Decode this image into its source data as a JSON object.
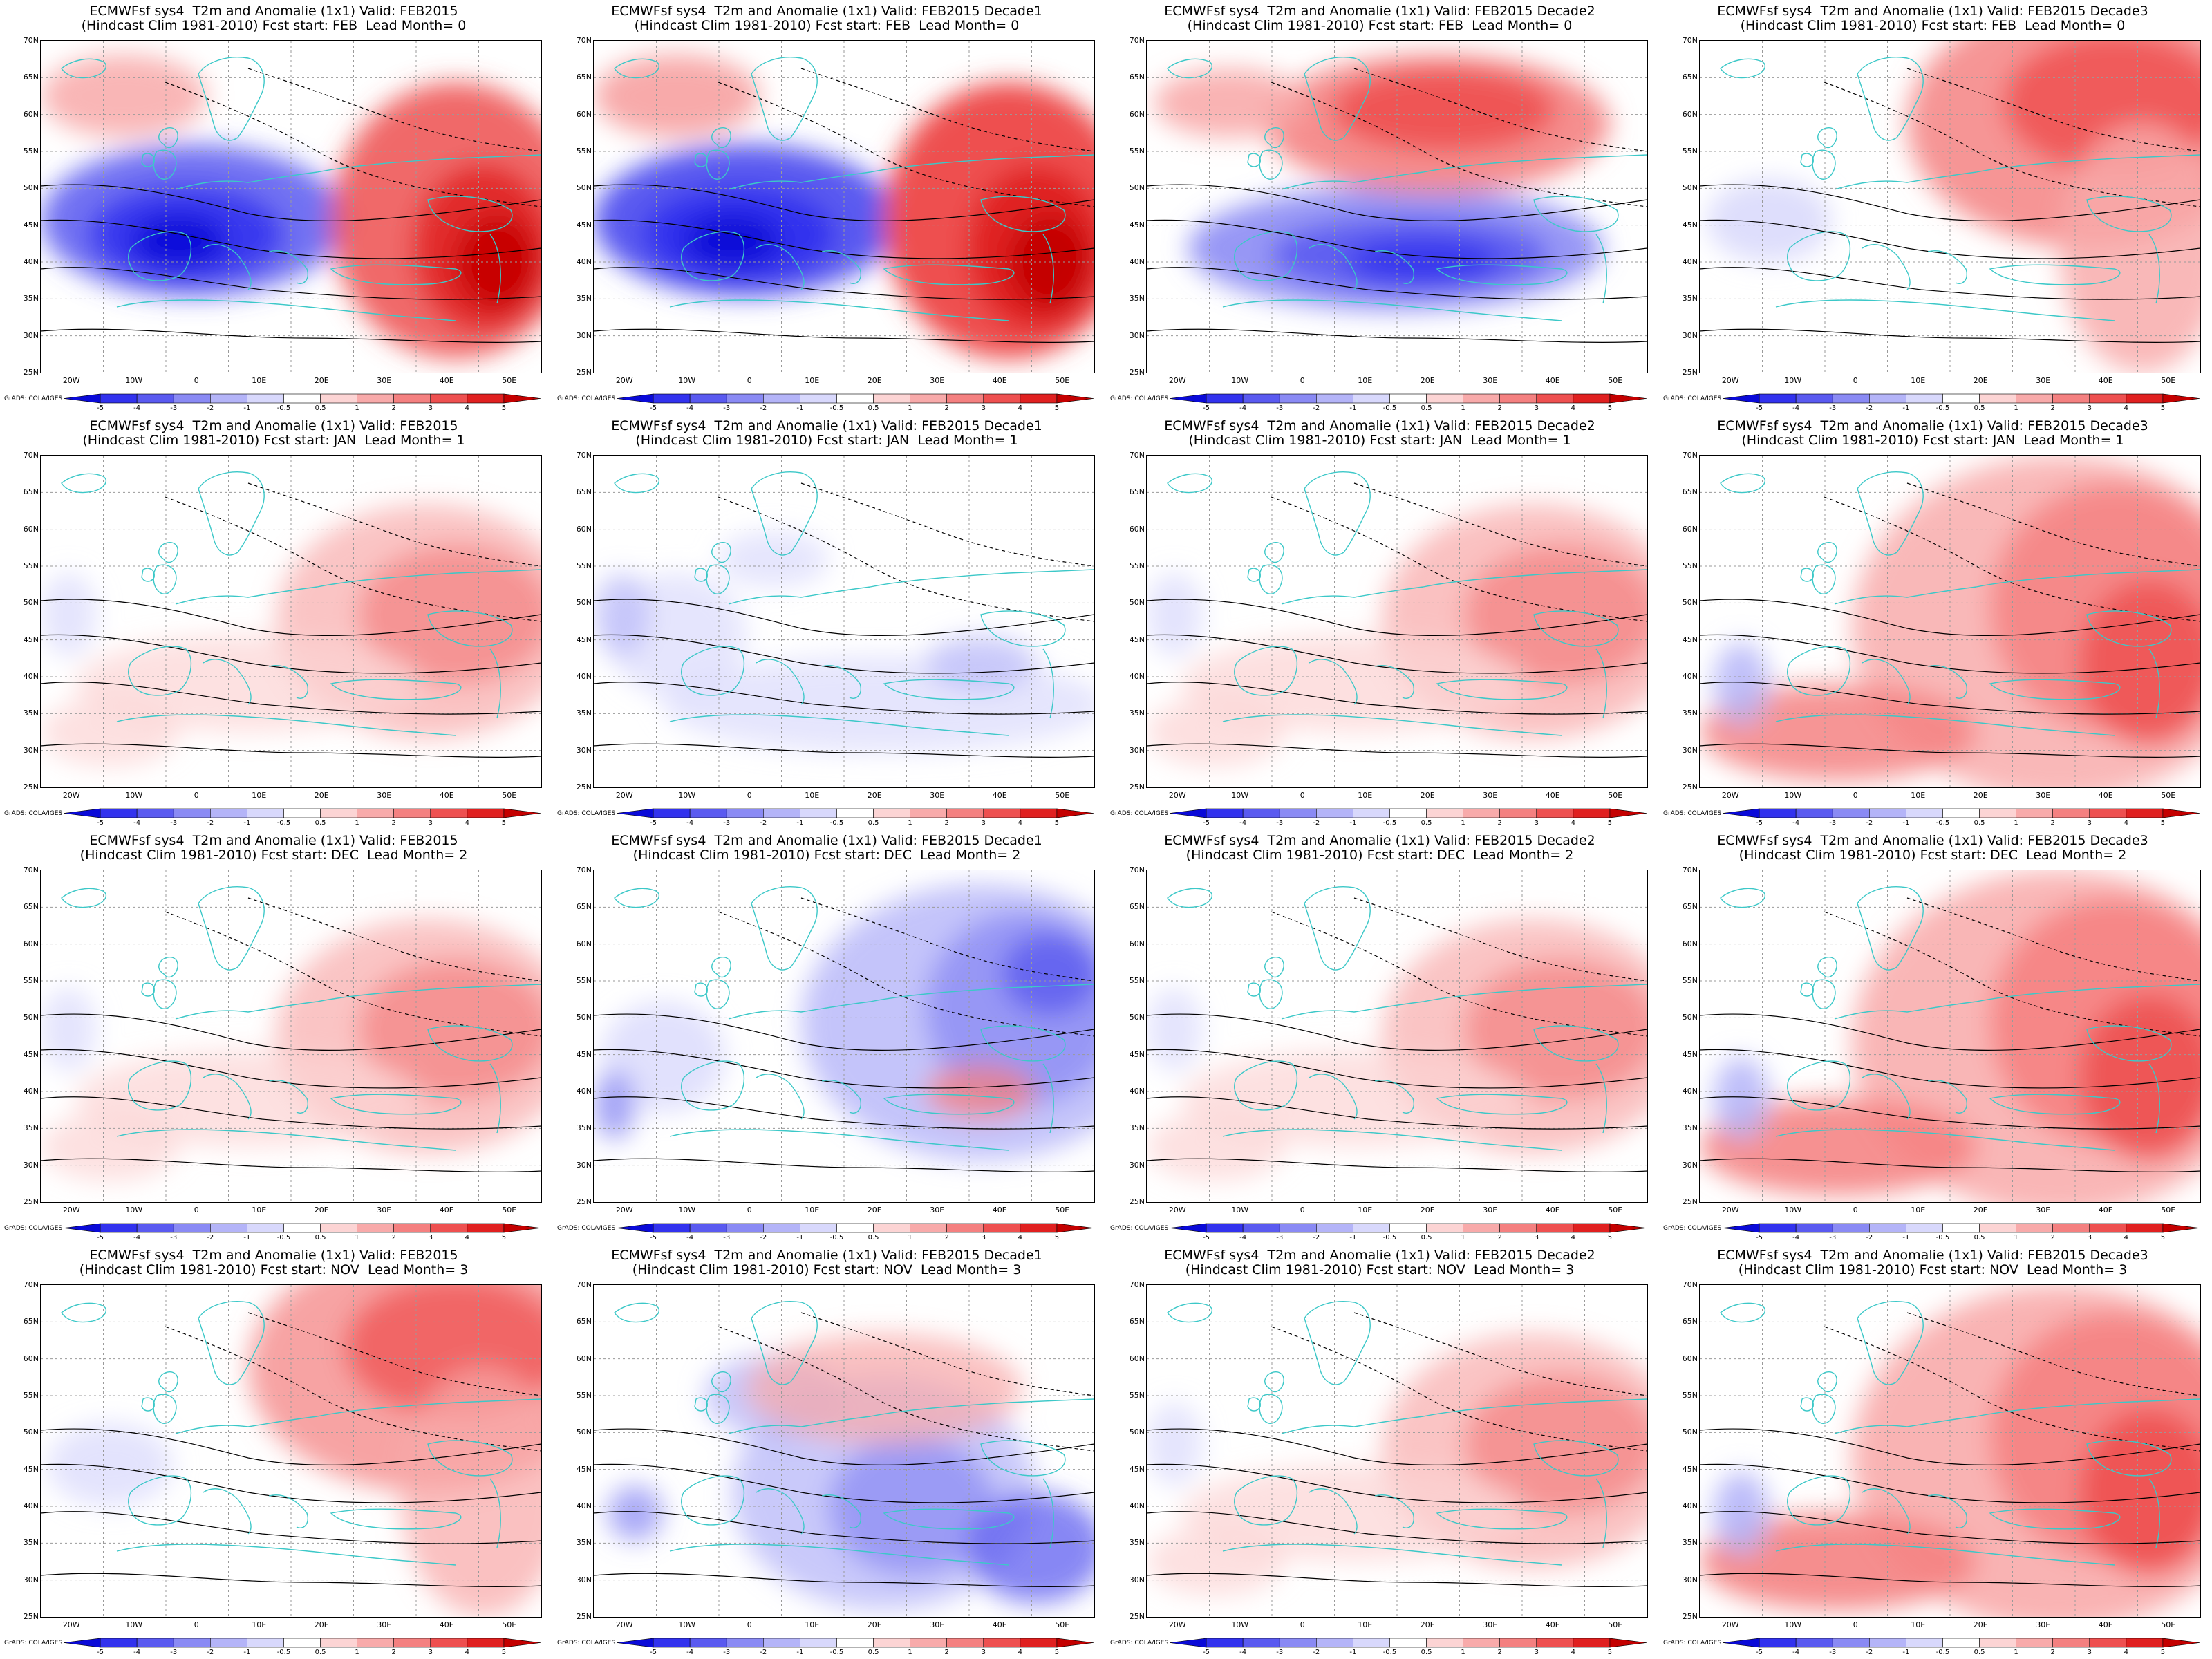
{
  "figure": {
    "credit": "GrADS: COLA/IGES",
    "latitude_labels": [
      "70N",
      "65N",
      "60N",
      "55N",
      "50N",
      "45N",
      "40N",
      "35N",
      "30N",
      "25N"
    ],
    "longitude_labels": [
      "20W",
      "10W",
      "0",
      "10E",
      "20E",
      "30E",
      "40E",
      "50E"
    ],
    "colorbar_labels": [
      "-5",
      "-4",
      "-3",
      "-2",
      "-1",
      "-0.5",
      "0.5",
      "1",
      "2",
      "3",
      "4",
      "5"
    ],
    "colorbar_colors": [
      "#0a0ad8",
      "#3232ee",
      "#5a5af0",
      "#8a8af4",
      "#b4b4f8",
      "#d8d8fc",
      "#ffffff",
      "#fcd4d4",
      "#f8aaaa",
      "#f48080",
      "#ee5050",
      "#e02020",
      "#c40000"
    ],
    "colors": {
      "coast": "#3cc8c8",
      "contour": "#000000",
      "warm": "#e82020",
      "cold": "#2020e0"
    }
  },
  "panels": [
    {
      "title1": "ECMWFsf sys4  T2m and Anomalie (1x1) Valid: FEB2015",
      "title2": "(Hindcast Clim 1981-2010) Fcst start: FEB  Lead Month= 0",
      "pattern": "west-cold-east-warm",
      "strength": 0.75
    },
    {
      "title1": "ECMWFsf sys4  T2m and Anomalie (1x1) Valid: FEB2015 Decade1",
      "title2": "(Hindcast Clim 1981-2010) Fcst start: FEB  Lead Month= 0",
      "pattern": "west-cold-east-warm",
      "strength": 1.0
    },
    {
      "title1": "ECMWFsf sys4  T2m and Anomalie (1x1) Valid: FEB2015 Decade2",
      "title2": "(Hindcast Clim 1981-2010) Fcst start: FEB  Lead Month= 0",
      "pattern": "mediterranean-cold-north-warm",
      "strength": 0.8
    },
    {
      "title1": "ECMWFsf sys4  T2m and Anomalie (1x1) Valid: FEB2015 Decade3",
      "title2": "(Hindcast Clim 1981-2010) Fcst start: FEB  Lead Month= 0",
      "pattern": "warm-northeast",
      "strength": 0.7
    },
    {
      "title1": "ECMWFsf sys4  T2m and Anomalie (1x1) Valid: FEB2015",
      "title2": "(Hindcast Clim 1981-2010) Fcst start: JAN  Lead Month= 1",
      "pattern": "mild-warm-east",
      "strength": 0.45
    },
    {
      "title1": "ECMWFsf sys4  T2m and Anomalie (1x1) Valid: FEB2015 Decade1",
      "title2": "(Hindcast Clim 1981-2010) Fcst start: JAN  Lead Month= 1",
      "pattern": "mild-cold",
      "strength": 0.4
    },
    {
      "title1": "ECMWFsf sys4  T2m and Anomalie (1x1) Valid: FEB2015 Decade2",
      "title2": "(Hindcast Clim 1981-2010) Fcst start: JAN  Lead Month= 1",
      "pattern": "mild-warm-east",
      "strength": 0.5
    },
    {
      "title1": "ECMWFsf sys4  T2m and Anomalie (1x1) Valid: FEB2015 Decade3",
      "title2": "(Hindcast Clim 1981-2010) Fcst start: JAN  Lead Month= 1",
      "pattern": "warm-broad",
      "strength": 0.7
    },
    {
      "title1": "ECMWFsf sys4  T2m and Anomalie (1x1) Valid: FEB2015",
      "title2": "(Hindcast Clim 1981-2010) Fcst start: DEC  Lead Month= 2",
      "pattern": "mild-warm-east",
      "strength": 0.45
    },
    {
      "title1": "ECMWFsf sys4  T2m and Anomalie (1x1) Valid: FEB2015 Decade1",
      "title2": "(Hindcast Clim 1981-2010) Fcst start: DEC  Lead Month= 2",
      "pattern": "cold-northeast",
      "strength": 0.6
    },
    {
      "title1": "ECMWFsf sys4  T2m and Anomalie (1x1) Valid: FEB2015 Decade2",
      "title2": "(Hindcast Clim 1981-2010) Fcst start: DEC  Lead Month= 2",
      "pattern": "mild-warm-east",
      "strength": 0.45
    },
    {
      "title1": "ECMWFsf sys4  T2m and Anomalie (1x1) Valid: FEB2015 Decade3",
      "title2": "(Hindcast Clim 1981-2010) Fcst start: DEC  Lead Month= 2",
      "pattern": "warm-broad",
      "strength": 0.75
    },
    {
      "title1": "ECMWFsf sys4  T2m and Anomalie (1x1) Valid: FEB2015",
      "title2": "(Hindcast Clim 1981-2010) Fcst start: NOV  Lead Month= 3",
      "pattern": "warm-northeast",
      "strength": 0.5
    },
    {
      "title1": "ECMWFsf sys4  T2m and Anomalie (1x1) Valid: FEB2015 Decade1",
      "title2": "(Hindcast Clim 1981-2010) Fcst start: NOV  Lead Month= 3",
      "pattern": "cold-band",
      "strength": 0.5
    },
    {
      "title1": "ECMWFsf sys4  T2m and Anomalie (1x1) Valid: FEB2015 Decade2",
      "title2": "(Hindcast Clim 1981-2010) Fcst start: NOV  Lead Month= 3",
      "pattern": "mild-warm-east",
      "strength": 0.45
    },
    {
      "title1": "ECMWFsf sys4  T2m and Anomalie (1x1) Valid: FEB2015 Decade3",
      "title2": "(Hindcast Clim 1981-2010) Fcst start: NOV  Lead Month= 3",
      "pattern": "warm-broad",
      "strength": 0.8
    }
  ]
}
